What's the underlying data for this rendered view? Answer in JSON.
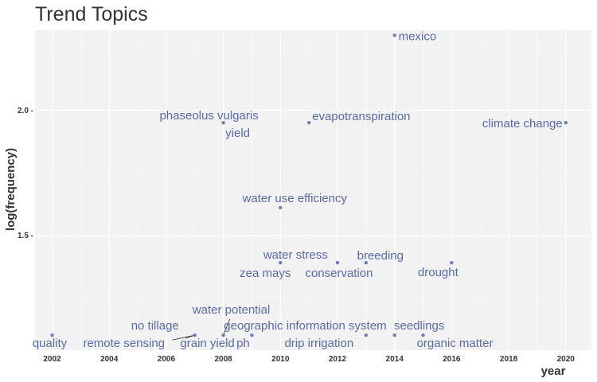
{
  "chart_data": {
    "type": "scatter",
    "title": "Trend Topics",
    "xlabel": "year",
    "ylabel": "log(frequency)",
    "xlim": [
      2001.4,
      2020.9
    ],
    "ylim": [
      1.04,
      2.32
    ],
    "x_ticks": [
      2002,
      2004,
      2006,
      2008,
      2010,
      2012,
      2014,
      2016,
      2018,
      2020
    ],
    "y_ticks": [
      1.5,
      2.0
    ],
    "y_tick_labels": [
      "1.5 -",
      "2.0 -"
    ],
    "grid": true,
    "point_color": "#6e7fb5",
    "label_color": "#5a6aa6",
    "points": [
      {
        "x": 2014,
        "y": 2.3,
        "label": "mexico"
      },
      {
        "x": 2008,
        "y": 1.95,
        "label": "phaseolus vulgaris"
      },
      {
        "x": 2008,
        "y": 1.95,
        "label": "yield"
      },
      {
        "x": 2011,
        "y": 1.95,
        "label": "evapotranspiration"
      },
      {
        "x": 2020,
        "y": 1.95,
        "label": "climate change"
      },
      {
        "x": 2010,
        "y": 1.61,
        "label": "water use efficiency"
      },
      {
        "x": 2010,
        "y": 1.39,
        "label": "water stress"
      },
      {
        "x": 2010,
        "y": 1.39,
        "label": "zea mays"
      },
      {
        "x": 2012,
        "y": 1.39,
        "label": "conservation"
      },
      {
        "x": 2013,
        "y": 1.39,
        "label": "breeding"
      },
      {
        "x": 2016,
        "y": 1.39,
        "label": "drought"
      },
      {
        "x": 2002,
        "y": 1.1,
        "label": "quality"
      },
      {
        "x": 2007,
        "y": 1.1,
        "label": "remote sensing"
      },
      {
        "x": 2007,
        "y": 1.1,
        "label": "no tillage"
      },
      {
        "x": 2008,
        "y": 1.1,
        "label": "grain yield"
      },
      {
        "x": 2008,
        "y": 1.1,
        "label": "water potential"
      },
      {
        "x": 2009,
        "y": 1.1,
        "label": "ph"
      },
      {
        "x": 2009,
        "y": 1.1,
        "label": "geographic information system"
      },
      {
        "x": 2013,
        "y": 1.1,
        "label": "drip irrigation"
      },
      {
        "x": 2014,
        "y": 1.1,
        "label": "seedlings"
      },
      {
        "x": 2015,
        "y": 1.1,
        "label": "organic matter"
      }
    ]
  }
}
